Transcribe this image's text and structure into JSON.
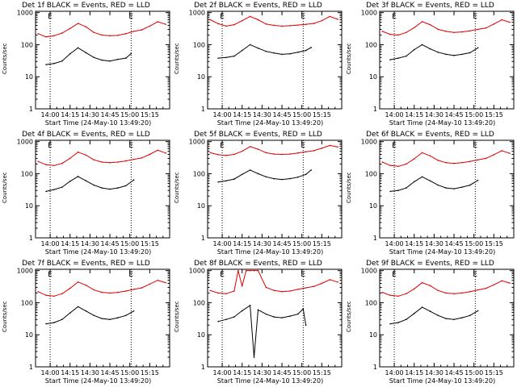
{
  "figure": {
    "series_names": [
      "Events",
      "LLD"
    ],
    "colors": {
      "events": "#000000",
      "lld": "#dd0000",
      "axes": "#000000"
    }
  },
  "chart_data": [
    {
      "type": "line",
      "title": "Det 1f BLACK = Events, RED = LLD",
      "ylabel": "Counts/sec",
      "xlabel": "Start Time (24-May-10 13:49:20)",
      "x_tick_labels": [
        "14:00",
        "14:15",
        "14:30",
        "14:45",
        "15:00",
        "15:15"
      ],
      "x_tick_minutes": [
        0,
        15,
        30,
        45,
        60,
        75
      ],
      "xlim_minutes": [
        -11,
        90
      ],
      "y_tick_labels": [
        "1",
        "10",
        "100",
        "1000"
      ],
      "ylim": [
        1,
        1100
      ],
      "vlines_minutes": [
        0,
        61
      ],
      "markers": [
        "E",
        "E"
      ],
      "series": [
        {
          "name": "Events",
          "x": [
            -3,
            3,
            9,
            15,
            21,
            27,
            33,
            39,
            45,
            51,
            57,
            61
          ],
          "values": [
            24,
            26,
            31,
            52,
            80,
            56,
            40,
            33,
            31,
            35,
            38,
            53
          ]
        },
        {
          "name": "LLD",
          "x": [
            -9,
            -3,
            3,
            9,
            15,
            21,
            27,
            33,
            39,
            45,
            51,
            57,
            63,
            69,
            75,
            81,
            87
          ],
          "values": [
            220,
            175,
            190,
            230,
            320,
            460,
            360,
            240,
            200,
            190,
            195,
            220,
            260,
            290,
            380,
            520,
            430
          ]
        }
      ]
    },
    {
      "type": "line",
      "title": "Det 2f BLACK = Events, RED = LLD",
      "ylabel": "Counts/sec",
      "xlabel": "Start Time (24-May-10 13:49:20)",
      "x_tick_labels": [
        "14:00",
        "14:15",
        "14:30",
        "14:45",
        "15:00",
        "15:15"
      ],
      "x_tick_minutes": [
        0,
        15,
        30,
        45,
        60,
        75
      ],
      "xlim_minutes": [
        -11,
        90
      ],
      "y_tick_labels": [
        "1",
        "10",
        "100",
        "1000"
      ],
      "ylim": [
        1,
        1100
      ],
      "vlines_minutes": [
        0,
        61
      ],
      "markers": [
        "E",
        "E"
      ],
      "series": [
        {
          "name": "Events",
          "x": [
            -3,
            3,
            9,
            15,
            21,
            27,
            33,
            39,
            45,
            51,
            57,
            63,
            67
          ],
          "values": [
            38,
            40,
            44,
            66,
            100,
            78,
            62,
            55,
            50,
            52,
            58,
            66,
            82
          ]
        },
        {
          "name": "LLD",
          "x": [
            -9,
            -3,
            3,
            9,
            15,
            21,
            27,
            33,
            39,
            45,
            51,
            57,
            63,
            69,
            75,
            81,
            87
          ],
          "values": [
            600,
            450,
            380,
            420,
            560,
            760,
            600,
            440,
            400,
            380,
            390,
            410,
            430,
            460,
            560,
            760,
            620
          ]
        }
      ]
    },
    {
      "type": "line",
      "title": "Det 3f BLACK = Events, RED = LLD",
      "ylabel": "Counts/sec",
      "xlabel": "Start Time (24-May-10 13:49:20)",
      "x_tick_labels": [
        "14:00",
        "14:15",
        "14:30",
        "14:45",
        "15:00",
        "15:15"
      ],
      "x_tick_minutes": [
        0,
        15,
        30,
        45,
        60,
        75
      ],
      "xlim_minutes": [
        -11,
        90
      ],
      "y_tick_labels": [
        "1",
        "10",
        "100",
        "1000"
      ],
      "ylim": [
        1,
        1100
      ],
      "vlines_minutes": [
        0,
        61
      ],
      "markers": [
        "E",
        "E"
      ],
      "series": [
        {
          "name": "Events",
          "x": [
            -3,
            3,
            9,
            15,
            21,
            27,
            33,
            39,
            45,
            51,
            57,
            63
          ],
          "values": [
            34,
            38,
            44,
            70,
            100,
            74,
            58,
            50,
            46,
            50,
            56,
            80
          ]
        },
        {
          "name": "LLD",
          "x": [
            -9,
            -3,
            3,
            9,
            15,
            21,
            27,
            33,
            39,
            45,
            51,
            57,
            63,
            69,
            75,
            81,
            87
          ],
          "values": [
            260,
            210,
            200,
            240,
            340,
            520,
            420,
            300,
            260,
            240,
            250,
            270,
            300,
            330,
            440,
            600,
            500
          ]
        }
      ]
    },
    {
      "type": "line",
      "title": "Det 4f BLACK = Events, RED = LLD",
      "ylabel": "Counts/sec",
      "xlabel": "Start Time (24-May-10 13:49:20)",
      "x_tick_labels": [
        "14:00",
        "14:15",
        "14:30",
        "14:45",
        "15:00",
        "15:15"
      ],
      "x_tick_minutes": [
        0,
        15,
        30,
        45,
        60,
        75
      ],
      "xlim_minutes": [
        -11,
        90
      ],
      "y_tick_labels": [
        "1",
        "10",
        "100",
        "1000"
      ],
      "ylim": [
        1,
        1100
      ],
      "vlines_minutes": [
        0,
        61
      ],
      "markers": [
        "E",
        "E"
      ],
      "series": [
        {
          "name": "Events",
          "x": [
            -3,
            3,
            9,
            15,
            21,
            27,
            33,
            39,
            45,
            51,
            57,
            63
          ],
          "values": [
            28,
            32,
            38,
            58,
            82,
            60,
            44,
            36,
            33,
            36,
            42,
            64
          ]
        },
        {
          "name": "LLD",
          "x": [
            -9,
            -3,
            3,
            9,
            15,
            21,
            27,
            33,
            39,
            45,
            51,
            57,
            63,
            69,
            75,
            81,
            87
          ],
          "values": [
            240,
            190,
            180,
            210,
            300,
            470,
            380,
            270,
            230,
            220,
            230,
            250,
            280,
            310,
            400,
            540,
            440
          ]
        }
      ]
    },
    {
      "type": "line",
      "title": "Det 5f BLACK = Events, RED = LLD",
      "ylabel": "Counts/sec",
      "xlabel": "Start Time (24-May-10 13:49:20)",
      "x_tick_labels": [
        "14:00",
        "14:15",
        "14:30",
        "14:45",
        "15:00",
        "15:15"
      ],
      "x_tick_minutes": [
        0,
        15,
        30,
        45,
        60,
        75
      ],
      "xlim_minutes": [
        -11,
        90
      ],
      "y_tick_labels": [
        "1",
        "10",
        "100",
        "1000"
      ],
      "ylim": [
        1,
        1100
      ],
      "vlines_minutes": [
        0,
        61
      ],
      "markers": [
        "E",
        "E"
      ],
      "series": [
        {
          "name": "Events",
          "x": [
            -3,
            3,
            9,
            15,
            21,
            27,
            33,
            39,
            45,
            51,
            57,
            63,
            67
          ],
          "values": [
            55,
            60,
            68,
            95,
            130,
            100,
            80,
            70,
            66,
            70,
            78,
            95,
            130
          ]
        },
        {
          "name": "LLD",
          "x": [
            -9,
            -3,
            3,
            9,
            15,
            21,
            27,
            33,
            39,
            45,
            51,
            57,
            63,
            69,
            75,
            81,
            87
          ],
          "values": [
            450,
            390,
            370,
            400,
            500,
            700,
            580,
            450,
            410,
            400,
            410,
            440,
            480,
            520,
            620,
            760,
            680
          ]
        }
      ]
    },
    {
      "type": "line",
      "title": "Det 6f BLACK = Events, RED = LLD",
      "ylabel": "Counts/sec",
      "xlabel": "Start Time (24-May-10 13:49:20)",
      "x_tick_labels": [
        "14:00",
        "14:15",
        "14:30",
        "14:45",
        "15:00",
        "15:15"
      ],
      "x_tick_minutes": [
        0,
        15,
        30,
        45,
        60,
        75
      ],
      "xlim_minutes": [
        -11,
        90
      ],
      "y_tick_labels": [
        "1",
        "10",
        "100",
        "1000"
      ],
      "ylim": [
        1,
        1100
      ],
      "vlines_minutes": [
        0,
        61
      ],
      "markers": [
        "E",
        "E"
      ],
      "series": [
        {
          "name": "Events",
          "x": [
            -3,
            3,
            9,
            15,
            21,
            27,
            33,
            39,
            45,
            51,
            57,
            63
          ],
          "values": [
            28,
            30,
            36,
            56,
            80,
            60,
            44,
            36,
            34,
            38,
            44,
            62
          ]
        },
        {
          "name": "LLD",
          "x": [
            -9,
            -3,
            3,
            9,
            15,
            21,
            27,
            33,
            39,
            45,
            51,
            57,
            63,
            69,
            75,
            81,
            87
          ],
          "values": [
            230,
            180,
            170,
            200,
            290,
            450,
            360,
            260,
            220,
            210,
            220,
            240,
            270,
            300,
            390,
            520,
            430
          ]
        }
      ]
    },
    {
      "type": "line",
      "title": "Det 7f BLACK = Events, RED = LLD",
      "ylabel": "Counts/sec",
      "xlabel": "Start Time (24-May-10 13:49:20)",
      "x_tick_labels": [
        "14:00",
        "14:15",
        "14:30",
        "14:45",
        "15:00",
        "15:15"
      ],
      "x_tick_minutes": [
        0,
        15,
        30,
        45,
        60,
        75
      ],
      "xlim_minutes": [
        -11,
        90
      ],
      "y_tick_labels": [
        "1",
        "10",
        "100",
        "1000"
      ],
      "ylim": [
        1,
        1100
      ],
      "vlines_minutes": [
        0,
        61
      ],
      "markers": [
        "E",
        "E"
      ],
      "series": [
        {
          "name": "Events",
          "x": [
            -3,
            3,
            9,
            15,
            21,
            27,
            33,
            39,
            45,
            51,
            57,
            63
          ],
          "values": [
            22,
            24,
            30,
            48,
            75,
            55,
            40,
            32,
            30,
            34,
            40,
            55
          ]
        },
        {
          "name": "LLD",
          "x": [
            -9,
            -3,
            3,
            9,
            15,
            21,
            27,
            33,
            39,
            45,
            51,
            57,
            63,
            69,
            75,
            81,
            87
          ],
          "values": [
            220,
            170,
            160,
            190,
            280,
            440,
            350,
            250,
            210,
            200,
            210,
            230,
            260,
            290,
            380,
            500,
            420
          ]
        }
      ]
    },
    {
      "type": "line",
      "title": "Det 8f BLACK = Events, RED = LLD",
      "ylabel": "Counts/sec",
      "xlabel": "Start Time (24-May-10 13:49:20)",
      "x_tick_labels": [
        "14:00",
        "14:15",
        "14:30",
        "14:45",
        "15:00",
        "15:15"
      ],
      "x_tick_minutes": [
        0,
        15,
        30,
        45,
        60,
        75
      ],
      "xlim_minutes": [
        -11,
        90
      ],
      "y_tick_labels": [
        "1",
        "10",
        "100",
        "1000"
      ],
      "ylim": [
        1,
        1100
      ],
      "vlines_minutes": [
        0,
        61
      ],
      "markers": [
        "E",
        "E"
      ],
      "series": [
        {
          "name": "Events",
          "x": [
            -3,
            3,
            9,
            15,
            21,
            24,
            27,
            33,
            39,
            45,
            51,
            57,
            61,
            63
          ],
          "values": [
            26,
            30,
            36,
            56,
            82,
            2,
            60,
            44,
            36,
            34,
            38,
            44,
            64,
            20
          ]
        },
        {
          "name": "LLD",
          "x": [
            -9,
            -3,
            3,
            9,
            12,
            15,
            18,
            21,
            24,
            27,
            33,
            39,
            45,
            51,
            57,
            63,
            69,
            75,
            81,
            87
          ],
          "values": [
            240,
            200,
            190,
            230,
            1000,
            330,
            1000,
            1000,
            1000,
            1000,
            300,
            240,
            220,
            230,
            260,
            290,
            320,
            400,
            520,
            440
          ]
        }
      ]
    },
    {
      "type": "line",
      "title": "Det 9f BLACK = Events, RED = LLD",
      "ylabel": "Counts/sec",
      "xlabel": "Start Time (24-May-10 13:49:20)",
      "x_tick_labels": [
        "14:00",
        "14:15",
        "14:30",
        "14:45",
        "15:00",
        "15:15"
      ],
      "x_tick_minutes": [
        0,
        15,
        30,
        45,
        60,
        75
      ],
      "xlim_minutes": [
        -11,
        90
      ],
      "y_tick_labels": [
        "1",
        "10",
        "100",
        "1000"
      ],
      "ylim": [
        1,
        1100
      ],
      "vlines_minutes": [
        0,
        61
      ],
      "markers": [
        "E",
        "E"
      ],
      "series": [
        {
          "name": "Events",
          "x": [
            -3,
            3,
            9,
            15,
            21,
            27,
            33,
            39,
            45,
            51,
            57,
            63
          ],
          "values": [
            22,
            24,
            30,
            46,
            72,
            54,
            40,
            32,
            30,
            34,
            40,
            56
          ]
        },
        {
          "name": "LLD",
          "x": [
            -9,
            -3,
            3,
            9,
            15,
            21,
            27,
            33,
            39,
            45,
            51,
            57,
            63,
            69,
            75,
            81,
            87
          ],
          "values": [
            210,
            170,
            160,
            190,
            270,
            420,
            340,
            240,
            200,
            190,
            200,
            220,
            250,
            280,
            360,
            480,
            410
          ]
        }
      ]
    }
  ]
}
